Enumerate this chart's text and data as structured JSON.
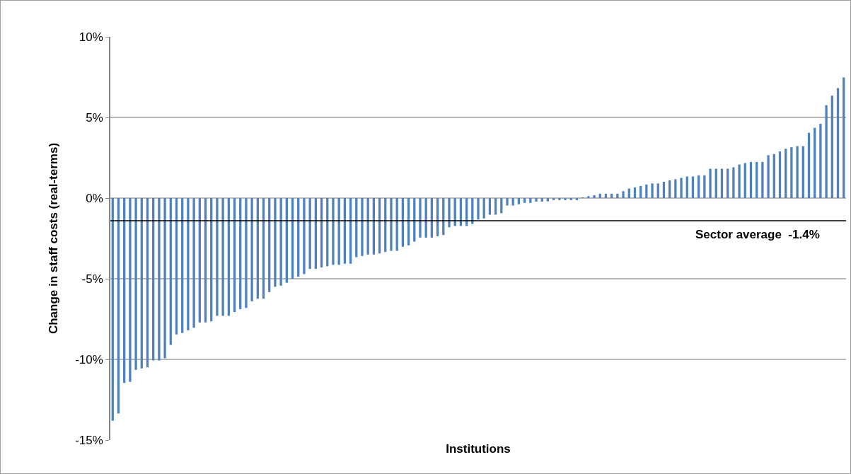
{
  "chart_data": {
    "type": "bar",
    "xlabel": "Institutions",
    "ylabel": "Change in staff costs (real-terms)",
    "categories": [
      null,
      null,
      null,
      null,
      null,
      null,
      null,
      null,
      null,
      null,
      null,
      null,
      null,
      null,
      null,
      null,
      null,
      null,
      null,
      null,
      null,
      null,
      null,
      null,
      null,
      null,
      null,
      null,
      null,
      null,
      null,
      null,
      null,
      null,
      null,
      null,
      null,
      null,
      null,
      null,
      null,
      null,
      null,
      null,
      null,
      null,
      null,
      null,
      null,
      null,
      null,
      null,
      null,
      null,
      null,
      null,
      null,
      null,
      null,
      null,
      null,
      null,
      null,
      null,
      null,
      null,
      null,
      null,
      null,
      null,
      null,
      null,
      null,
      null,
      null,
      null,
      null,
      null,
      null,
      null,
      null,
      null,
      null,
      null,
      null,
      null,
      null,
      null,
      null,
      null,
      null,
      null,
      null,
      null,
      null,
      null,
      null,
      null,
      null,
      null,
      null,
      null,
      null,
      null,
      null,
      null,
      null,
      null,
      null,
      null,
      null,
      null,
      null,
      null,
      null,
      null,
      null,
      null,
      null,
      null,
      null,
      null,
      null,
      null,
      null,
      null,
      null
    ],
    "values": [
      -13.8,
      -13.35,
      -11.46,
      -11.39,
      -10.65,
      -10.56,
      -10.49,
      -10.07,
      -10.07,
      -9.93,
      -9.1,
      -8.45,
      -8.36,
      -8.2,
      -8.04,
      -7.71,
      -7.71,
      -7.64,
      -7.3,
      -7.3,
      -7.3,
      -7.06,
      -6.89,
      -6.81,
      -6.4,
      -6.24,
      -6.24,
      -5.83,
      -5.5,
      -5.43,
      -5.25,
      -5.0,
      -4.87,
      -4.71,
      -4.39,
      -4.39,
      -4.3,
      -4.23,
      -4.14,
      -4.14,
      -4.07,
      -4.07,
      -3.66,
      -3.59,
      -3.5,
      -3.5,
      -3.43,
      -3.34,
      -3.27,
      -3.27,
      -3.02,
      -2.93,
      -2.7,
      -2.45,
      -2.45,
      -2.45,
      -2.36,
      -2.29,
      -1.81,
      -1.73,
      -1.73,
      -1.73,
      -1.6,
      -1.33,
      -1.26,
      -1.03,
      -1.03,
      -0.94,
      -0.46,
      -0.46,
      -0.38,
      -0.3,
      -0.3,
      -0.22,
      -0.22,
      -0.2,
      -0.13,
      -0.13,
      -0.13,
      -0.13,
      -0.13,
      0.04,
      0.12,
      0.18,
      0.27,
      0.27,
      0.27,
      0.27,
      0.43,
      0.59,
      0.66,
      0.75,
      0.84,
      0.91,
      0.91,
      1.01,
      1.1,
      1.17,
      1.25,
      1.34,
      1.34,
      1.41,
      1.41,
      1.82,
      1.82,
      1.82,
      1.82,
      1.91,
      2.08,
      2.17,
      2.24,
      2.24,
      2.24,
      2.66,
      2.73,
      2.89,
      3.06,
      3.15,
      3.22,
      3.22,
      4.05,
      4.36,
      4.61,
      5.76,
      6.35,
      6.82,
      7.48
    ],
    "color": "#4f81bd",
    "ylim": [
      -15,
      10
    ],
    "yticks": [
      {
        "value": -15,
        "label": "-15%"
      },
      {
        "value": -10,
        "label": "-10%"
      },
      {
        "value": -5,
        "label": "-5%"
      },
      {
        "value": 0,
        "label": "0%"
      },
      {
        "value": 5,
        "label": "5%"
      },
      {
        "value": 10,
        "label": "10%"
      }
    ],
    "grid": "y",
    "ref_lines": [
      {
        "axis": "y",
        "value": -1.4,
        "label": "Sector average  -1.4%",
        "color": "#000000"
      }
    ]
  }
}
